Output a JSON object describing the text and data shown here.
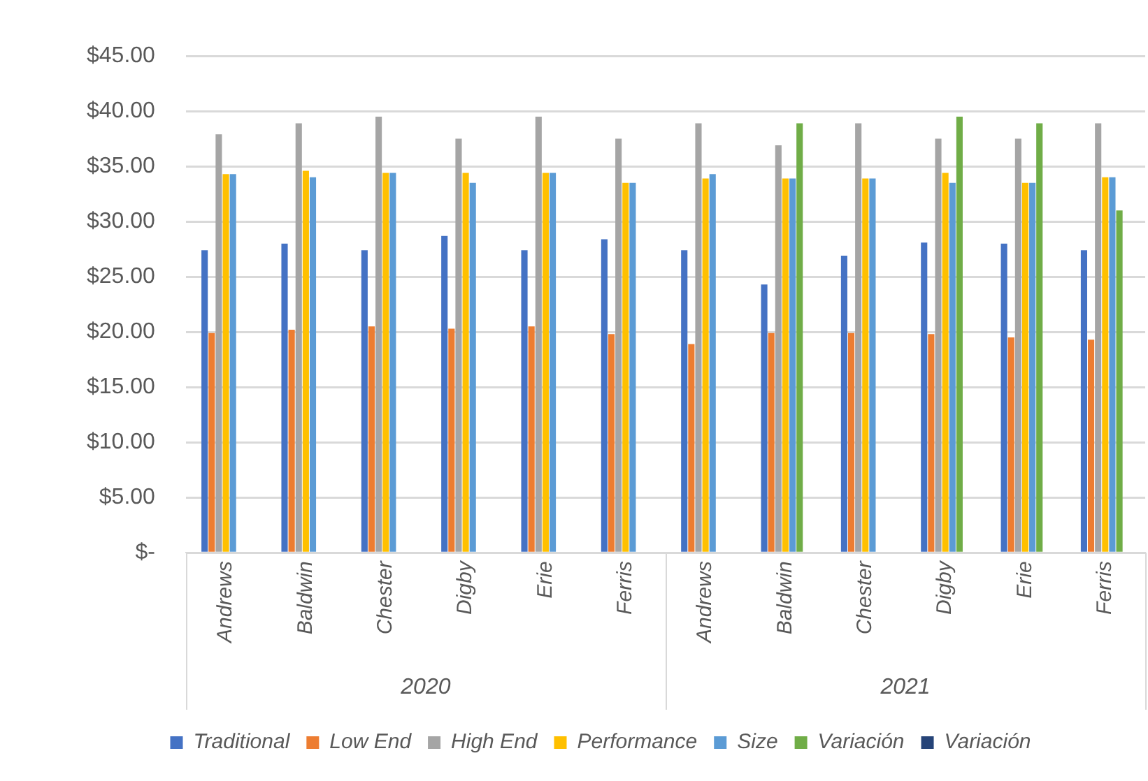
{
  "chart_data": {
    "type": "bar",
    "categories": [
      "Andrews",
      "Baldwin",
      "Chester",
      "Digby",
      "Erie",
      "Ferris",
      "Andrews",
      "Baldwin",
      "Chester",
      "Digby",
      "Erie",
      "Ferris"
    ],
    "series": [
      {
        "name": "Traditional",
        "color": "#4472c4",
        "values": [
          27.4,
          28.0,
          27.4,
          28.7,
          27.4,
          28.4,
          27.4,
          24.3,
          26.9,
          28.1,
          28.0,
          27.4
        ]
      },
      {
        "name": "Low End",
        "color": "#ed7d31",
        "values": [
          19.9,
          20.2,
          20.5,
          20.3,
          20.5,
          19.8,
          18.9,
          19.9,
          19.9,
          19.8,
          19.5,
          19.3
        ]
      },
      {
        "name": "High End",
        "color": "#a5a5a5",
        "values": [
          37.9,
          38.9,
          39.5,
          37.5,
          39.5,
          37.5,
          38.9,
          36.9,
          38.9,
          37.5,
          37.5,
          38.9
        ]
      },
      {
        "name": "Performance",
        "color": "#ffc000",
        "values": [
          34.3,
          34.6,
          34.4,
          34.4,
          34.4,
          33.5,
          33.9,
          33.9,
          33.9,
          34.4,
          33.5,
          34.0
        ]
      },
      {
        "name": "Size",
        "color": "#5b9bd5",
        "values": [
          34.3,
          34.0,
          34.4,
          33.5,
          34.4,
          33.5,
          34.3,
          33.9,
          33.9,
          33.5,
          33.5,
          34.0
        ]
      },
      {
        "name": "Variación",
        "color": "#70ad47",
        "values": [
          null,
          null,
          null,
          null,
          null,
          null,
          null,
          38.9,
          null,
          39.5,
          38.9,
          31.0
        ]
      },
      {
        "name": "Variación",
        "color": "#264478",
        "values": [
          null,
          null,
          null,
          null,
          null,
          null,
          null,
          null,
          null,
          null,
          null,
          null
        ]
      }
    ],
    "annotations": [
      "2020",
      "2021"
    ],
    "ylim": [
      0,
      45
    ],
    "yticks": [
      {
        "value": 0,
        "label": "$-"
      },
      {
        "value": 5,
        "label": "$5.00"
      },
      {
        "value": 10,
        "label": "$10.00"
      },
      {
        "value": 15,
        "label": "$15.00"
      },
      {
        "value": 20,
        "label": "$20.00"
      },
      {
        "value": 25,
        "label": "$25.00"
      },
      {
        "value": 30,
        "label": "$30.00"
      },
      {
        "value": 35,
        "label": "$35.00"
      },
      {
        "value": 40,
        "label": "$40.00"
      },
      {
        "value": 45,
        "label": "$45.00"
      }
    ],
    "grid": "y",
    "legend": "bottom"
  }
}
